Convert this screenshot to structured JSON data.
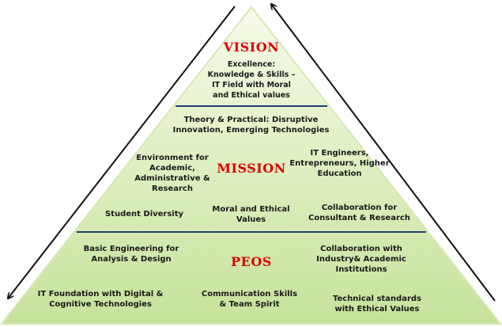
{
  "colors": {
    "fill_top": "#f7fbe9",
    "fill_bottom": "#c6e39a",
    "outline": "#d7e7b6",
    "divider": "#1f3f6e",
    "heading": "#e00000",
    "arrow": "#111111"
  },
  "vision": {
    "title": "VISION",
    "statement": "Excellence:\nKnowledge & Skills –\nIT Field with Moral\nand Ethical values"
  },
  "mission": {
    "title": "MISSION",
    "items": {
      "theory": "Theory & Practical: Disruptive\nInnovation, Emerging Technologies",
      "environment": "Environment for\nAcademic,\nAdministrative &\nResearch",
      "it_engineers": "IT Engineers,\nEntrepreneurs, Higher\nEducation",
      "diversity": "Student Diversity",
      "moral": "Moral and Ethical\nValues",
      "collaboration": "Collaboration for\nConsultant & Research"
    }
  },
  "peos": {
    "title": "PEOS",
    "items": {
      "basic_engineering": "Basic Engineering for\nAnalysis & Design",
      "industry_collab": "Collaboration with\nIndustry& Academic\nInstitutions",
      "it_foundation": "IT Foundation with Digital &\nCognitive Technologies",
      "communication": "Communication Skills\n& Team Spirit",
      "technical_standards": "Technical standards\nwith Ethical Values"
    }
  }
}
